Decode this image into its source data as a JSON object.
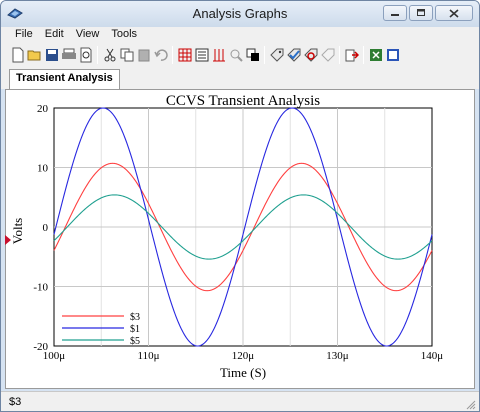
{
  "window": {
    "title": "Analysis Graphs",
    "minimize_label": "",
    "maximize_label": "",
    "close_label": ""
  },
  "menu": [
    "File",
    "Edit",
    "View",
    "Tools"
  ],
  "toolbar": {
    "icons": [
      "new-icon",
      "open-icon",
      "save-icon",
      "print-icon",
      "print-preview-icon",
      "cut-icon",
      "copy-icon",
      "paste-icon",
      "undo-icon",
      "grid-icon",
      "legend-icon",
      "cursors-icon",
      "zoom-icon",
      "reverse-colors-icon",
      "tag-icon",
      "tag-check-icon",
      "tag-refresh-icon",
      "tag-disabled-icon",
      "export-icon",
      "excel-icon",
      "mathcad-icon"
    ]
  },
  "tab": {
    "label": "Transient Analysis"
  },
  "status": {
    "text": "$3"
  },
  "colors": {
    "s3": "#ff4040",
    "s1": "#2828e0",
    "s5": "#20a090",
    "grid": "#c8c8c8"
  },
  "chart_data": {
    "type": "line",
    "title": "CCVS Transient Analysis",
    "xlabel": "Time (S)",
    "ylabel": "Volts",
    "xlim": [
      100,
      140
    ],
    "ylim": [
      -20,
      20
    ],
    "x_unit": "μ",
    "x_ticks": [
      "100μ",
      "110μ",
      "120μ",
      "130μ",
      "140μ"
    ],
    "y_ticks": [
      "20",
      "10",
      "0",
      "-10",
      "-20"
    ],
    "grid": true,
    "legend_position": "bottom-left",
    "series": [
      {
        "name": "$3",
        "color": "#ff4040",
        "amplitude": 10.7,
        "period": 20,
        "peak_x": 106.2
      },
      {
        "name": "$1",
        "color": "#2828e0",
        "amplitude": 20,
        "period": 20,
        "peak_x": 105.2
      },
      {
        "name": "$5",
        "color": "#20a090",
        "amplitude": 5.4,
        "period": 20,
        "peak_x": 106.4
      }
    ]
  }
}
